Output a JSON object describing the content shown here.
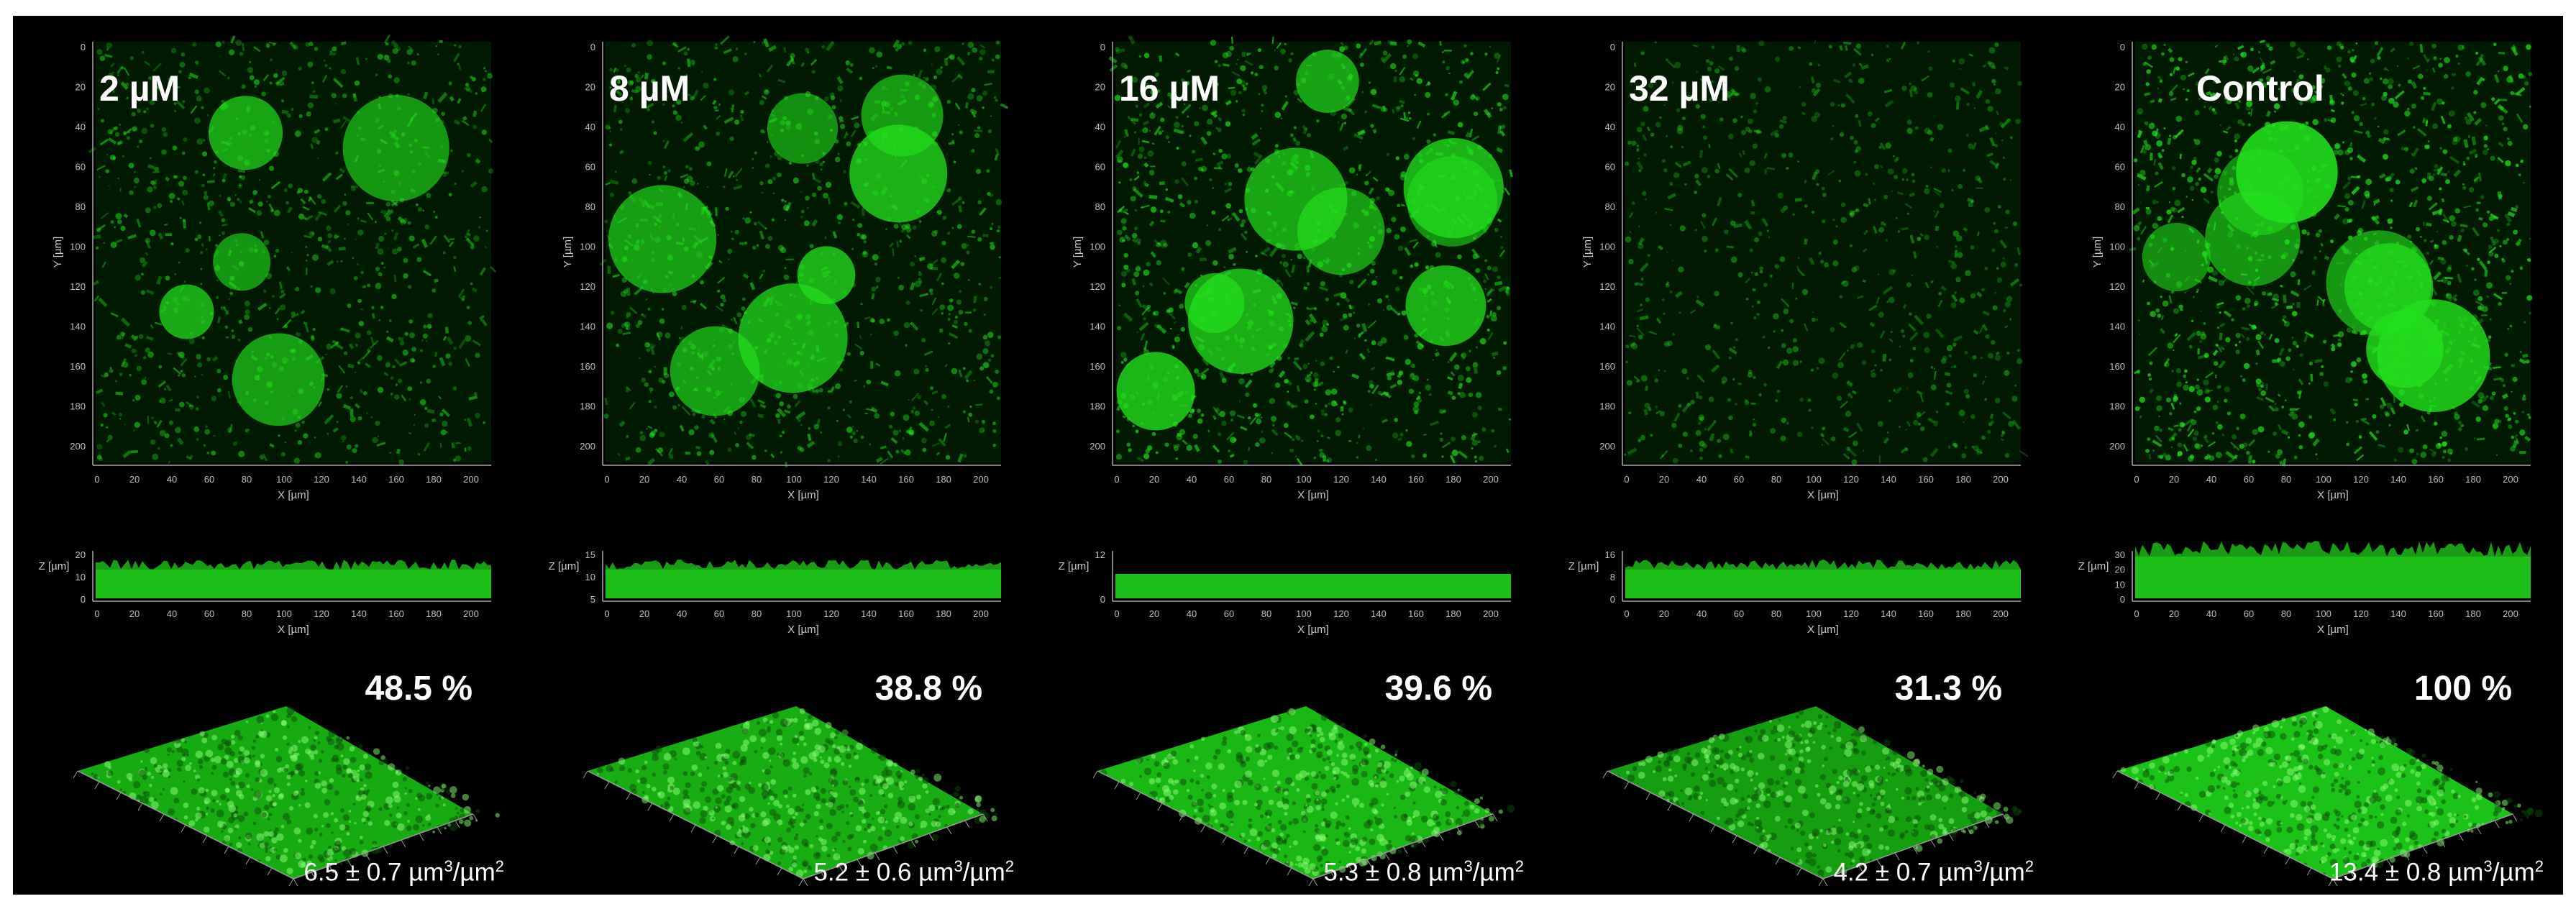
{
  "figure": {
    "background": "#000000",
    "biofilm_color": "#22e01c",
    "xy_axis_ticks": [
      "0",
      "20",
      "40",
      "60",
      "80",
      "100",
      "120",
      "140",
      "160",
      "180",
      "200"
    ],
    "xy_x_label": "X [µm]",
    "xy_y_label": "Y [µm]",
    "z_axis_label": "Z [µm]",
    "panels": [
      {
        "id": "p1",
        "concentration": "2 µM",
        "percent": "48.5 %",
        "volume": "6.5 ± 0.7 µm",
        "volume_unit": "3",
        "volume_tail": "/µm",
        "area_unit": "2",
        "z_ticks": [
          "20",
          "10",
          "0"
        ],
        "intensity": 0.55,
        "colonies": 5
      },
      {
        "id": "p2",
        "concentration": "8 µM",
        "percent": "38.8 %",
        "volume": "5.2 ± 0.6 µm",
        "volume_unit": "3",
        "volume_tail": "/µm",
        "area_unit": "2",
        "z_ticks": [
          "15",
          "10",
          "5"
        ],
        "intensity": 0.6,
        "colonies": 7
      },
      {
        "id": "p3",
        "concentration": "16 µM",
        "percent": "39.6 %",
        "volume": "5.3 ± 0.8 µm",
        "volume_unit": "3",
        "volume_tail": "/µm",
        "area_unit": "2",
        "z_ticks": [
          "12",
          "0"
        ],
        "intensity": 0.75,
        "colonies": 9
      },
      {
        "id": "p4",
        "concentration": "32 µM",
        "percent": "31.3 %",
        "volume": "4.2 ± 0.7 µm",
        "volume_unit": "3",
        "volume_tail": "/µm",
        "area_unit": "2",
        "z_ticks": [
          "16",
          "8",
          "0"
        ],
        "intensity": 0.35,
        "colonies": 0
      },
      {
        "id": "p5",
        "concentration": "Control",
        "percent": "100 %",
        "volume": "13.4 ± 0.8 µm",
        "volume_unit": "3",
        "volume_tail": "/µm",
        "area_unit": "2",
        "z_ticks": [
          "30",
          "20",
          "10",
          "0"
        ],
        "intensity": 0.9,
        "colonies": 8
      }
    ]
  }
}
